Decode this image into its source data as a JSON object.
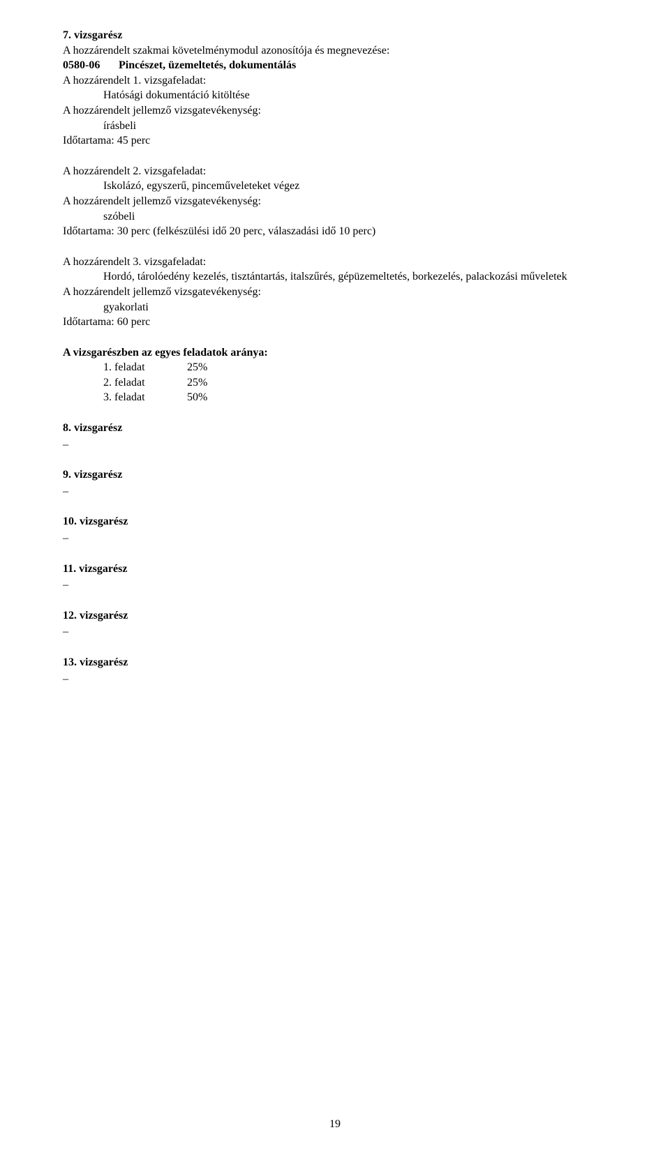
{
  "section7": {
    "heading": "7. vizsgarész",
    "line1": "A hozzárendelt szakmai követelménymodul azonosítója és megnevezése:",
    "code": "0580-06",
    "codeTitle": "Pincészet, üzemeltetés, dokumentálás",
    "task1": {
      "line1": "A hozzárendelt 1. vizsgafeladat:",
      "line2": "Hatósági dokumentáció kitöltése",
      "line3": "A hozzárendelt jellemző vizsgatevékenység:",
      "line4": "írásbeli",
      "line5": "Időtartama:  45 perc"
    },
    "task2": {
      "line1": "A hozzárendelt 2. vizsgafeladat:",
      "line2": "Iskolázó, egyszerű, pinceműveleteket végez",
      "line3": "A hozzárendelt jellemző vizsgatevékenység:",
      "line4": "szóbeli",
      "line5": "Időtartama:  30 perc (felkészülési idő 20 perc, válaszadási idő 10 perc)"
    },
    "task3": {
      "line1": "A hozzárendelt 3. vizsgafeladat:",
      "line2": "Hordó, tárolóedény kezelés, tisztántartás, italszűrés, gépüzemeltetés, borkezelés, palackozási műveletek",
      "line3": "A hozzárendelt jellemző vizsgatevékenység:",
      "line4": "gyakorlati",
      "line5": "Időtartama:  60 perc"
    },
    "ratios": {
      "heading": "A vizsgarészben az egyes feladatok aránya:",
      "r1label": "1. feladat",
      "r1value": "25%",
      "r2label": "2. feladat",
      "r2value": "25%",
      "r3label": "3. feladat",
      "r3value": "50%"
    }
  },
  "section8": {
    "heading": "8. vizsgarész",
    "dash": "–"
  },
  "section9": {
    "heading": "9. vizsgarész",
    "dash": "–"
  },
  "section10": {
    "heading": "10. vizsgarész",
    "dash": "–"
  },
  "section11": {
    "heading": "11. vizsgarész",
    "dash": "–"
  },
  "section12": {
    "heading": "12. vizsgarész",
    "dash": "–"
  },
  "section13": {
    "heading": "13. vizsgarész",
    "dash": "–"
  },
  "pageNumber": "19"
}
